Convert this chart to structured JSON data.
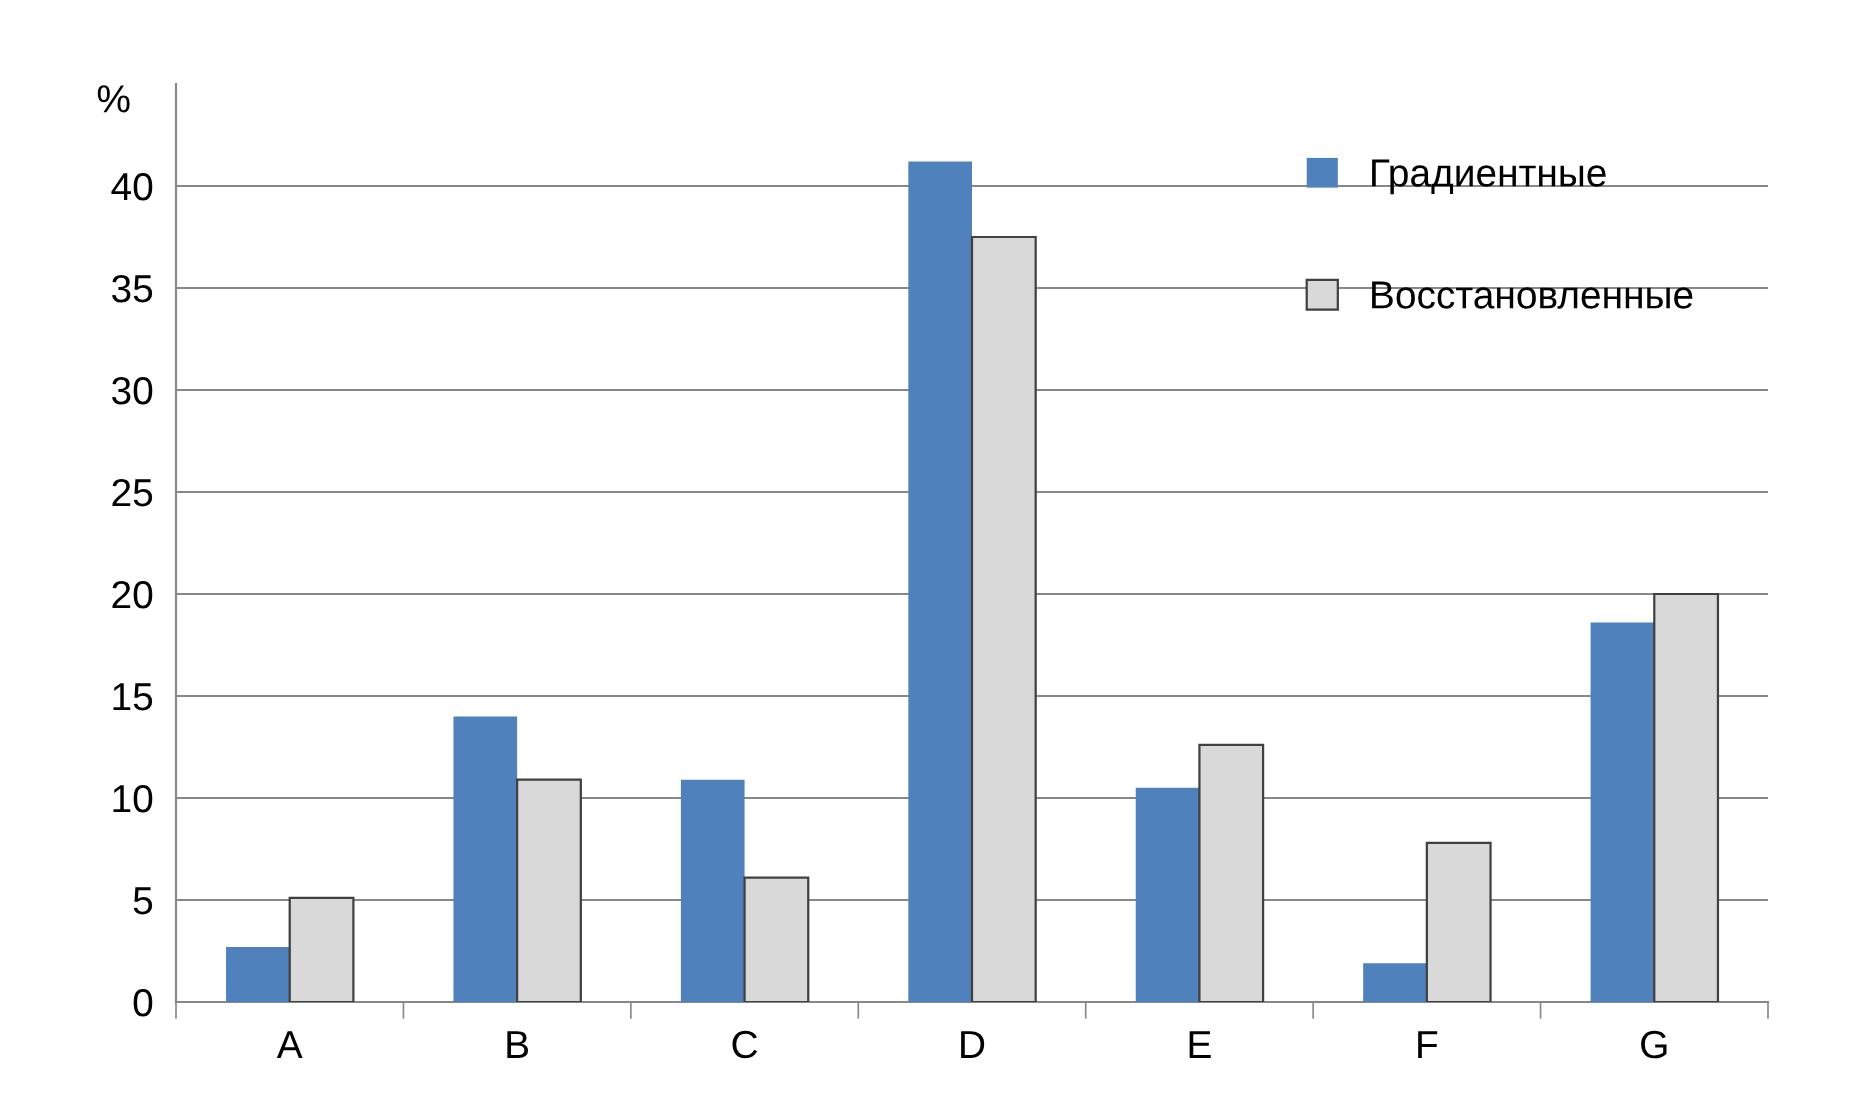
{
  "chart_data": {
    "type": "bar",
    "ylabel": "%",
    "categories": [
      "A",
      "B",
      "C",
      "D",
      "E",
      "F",
      "G"
    ],
    "series": [
      {
        "name": "Градиентные",
        "color": "#4f81bd",
        "values": [
          2.7,
          14.0,
          10.9,
          41.2,
          10.5,
          1.9,
          18.6
        ]
      },
      {
        "name": "Восстановленные",
        "color": "#d9d9d9",
        "values": [
          5.1,
          10.9,
          6.1,
          37.5,
          12.6,
          7.8,
          20.0
        ]
      }
    ],
    "ylim": [
      0,
      45
    ],
    "yticks": [
      0,
      5,
      10,
      15,
      20,
      25,
      30,
      35,
      40
    ],
    "grid": "y",
    "legend": "top right"
  }
}
